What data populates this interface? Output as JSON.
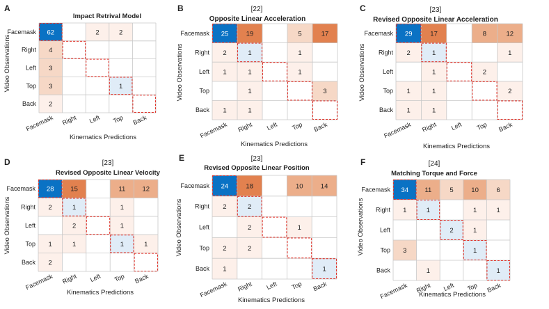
{
  "figure": {
    "axis_x_label": "Kinematics Predictions",
    "axis_y_label": "Video Observations",
    "categories": [
      "Facemask",
      "Right",
      "Left",
      "Top",
      "Back"
    ],
    "colors": {
      "dark_blue": "#0a72c4",
      "light_blue": "#e0ecf7",
      "orange_high": "#e2814f",
      "orange_mid": "#ecae8a",
      "orange_low": "#f6d8c6",
      "orange_faint": "#fdf0ea",
      "diagonal_dash": "#e0332a",
      "grid_line": "#c8c8c8",
      "text": "#222222"
    }
  },
  "chart_data": [
    {
      "type": "heatmap",
      "panel_letter": "A",
      "reference": "",
      "title": "Impact Retrival Model",
      "xlabel": "Kinematics Predictions",
      "ylabel": "Video Observations",
      "row_labels": [
        "Facemask",
        "Right",
        "Left",
        "Top",
        "Back"
      ],
      "col_labels": [
        "Facemask",
        "Right",
        "Left",
        "Top",
        "Back"
      ],
      "matrix": [
        [
          62,
          0,
          2,
          2,
          0
        ],
        [
          4,
          0,
          0,
          0,
          0
        ],
        [
          3,
          0,
          0,
          0,
          0
        ],
        [
          3,
          0,
          0,
          1,
          0
        ],
        [
          2,
          0,
          0,
          0,
          0
        ]
      ],
      "cell_text": [
        [
          "62",
          "",
          "2",
          "2",
          ""
        ],
        [
          "4",
          "",
          "",
          "",
          ""
        ],
        [
          "3",
          "",
          "",
          "",
          ""
        ],
        [
          "3",
          "",
          "",
          "1",
          ""
        ],
        [
          "2",
          "",
          "",
          "",
          ""
        ]
      ]
    },
    {
      "type": "heatmap",
      "panel_letter": "B",
      "reference": "[22]",
      "title": "Opposite Linear Acceleration",
      "xlabel": "Kinematics Predictions",
      "ylabel": "Video Observations",
      "row_labels": [
        "Facemask",
        "Right",
        "Left",
        "Top",
        "Back"
      ],
      "col_labels": [
        "Facemask",
        "Right",
        "Left",
        "Top",
        "Back"
      ],
      "matrix": [
        [
          25,
          19,
          0,
          5,
          17
        ],
        [
          2,
          1,
          0,
          1,
          0
        ],
        [
          1,
          1,
          0,
          1,
          0
        ],
        [
          0,
          1,
          0,
          0,
          3
        ],
        [
          1,
          1,
          0,
          0,
          0
        ]
      ],
      "cell_text": [
        [
          "25",
          "19",
          "",
          "5",
          "17"
        ],
        [
          "2",
          "1",
          "",
          "1",
          ""
        ],
        [
          "1",
          "1",
          "",
          "1",
          ""
        ],
        [
          "",
          "1",
          "",
          "",
          "3"
        ],
        [
          "1",
          "1",
          "",
          "",
          ""
        ]
      ]
    },
    {
      "type": "heatmap",
      "panel_letter": "C",
      "reference": "[23]",
      "title": "Revised Opposite Linear Acceleration",
      "xlabel": "Kinematics Predictions",
      "ylabel": "Video Observations",
      "row_labels": [
        "Facemask",
        "Right",
        "Left",
        "Top",
        "Back"
      ],
      "col_labels": [
        "Facemask",
        "Right",
        "Left",
        "Top",
        "Back"
      ],
      "matrix": [
        [
          29,
          17,
          0,
          8,
          12
        ],
        [
          2,
          1,
          0,
          0,
          1
        ],
        [
          0,
          1,
          0,
          2,
          0
        ],
        [
          1,
          1,
          0,
          0,
          2
        ],
        [
          1,
          1,
          0,
          0,
          0
        ]
      ],
      "cell_text": [
        [
          "29",
          "17",
          "",
          "8",
          "12"
        ],
        [
          "2",
          "1",
          "",
          "",
          "1"
        ],
        [
          "",
          "1",
          "",
          "2",
          ""
        ],
        [
          "1",
          "1",
          "",
          "",
          "2"
        ],
        [
          "1",
          "1",
          "",
          "",
          ""
        ]
      ]
    },
    {
      "type": "heatmap",
      "panel_letter": "D",
      "reference": "[23]",
      "title": "Revised Opposite Linear Velocity",
      "xlabel": "Kinematics Predictions",
      "ylabel": "Video Observations",
      "row_labels": [
        "Facemask",
        "Right",
        "Left",
        "Top",
        "Back"
      ],
      "col_labels": [
        "Facemask",
        "Right",
        "Left",
        "Top",
        "Back"
      ],
      "matrix": [
        [
          28,
          15,
          0,
          11,
          12
        ],
        [
          2,
          1,
          0,
          1,
          0
        ],
        [
          0,
          2,
          0,
          1,
          0
        ],
        [
          1,
          1,
          0,
          1,
          1
        ],
        [
          2,
          0,
          0,
          0,
          0
        ]
      ],
      "cell_text": [
        [
          "28",
          "15",
          "",
          "11",
          "12"
        ],
        [
          "2",
          "1",
          "",
          "1",
          ""
        ],
        [
          "",
          "2",
          "",
          "1",
          ""
        ],
        [
          "1",
          "1",
          "",
          "1",
          "1"
        ],
        [
          "2",
          "",
          "",
          "",
          ""
        ]
      ]
    },
    {
      "type": "heatmap",
      "panel_letter": "E",
      "reference": "[23]",
      "title": "Revised Opposite Linear Position",
      "xlabel": "Kinematics Predictions",
      "ylabel": "Video Observations",
      "row_labels": [
        "Facemask",
        "Right",
        "Left",
        "Top",
        "Back"
      ],
      "col_labels": [
        "Facemask",
        "Right",
        "Left",
        "Top",
        "Back"
      ],
      "matrix": [
        [
          24,
          18,
          0,
          10,
          14
        ],
        [
          2,
          2,
          0,
          0,
          0
        ],
        [
          0,
          2,
          0,
          1,
          0
        ],
        [
          2,
          2,
          0,
          0,
          0
        ],
        [
          1,
          0,
          0,
          0,
          1
        ]
      ],
      "cell_text": [
        [
          "24",
          "18",
          "",
          "10",
          "14"
        ],
        [
          "2",
          "2",
          "",
          "",
          ""
        ],
        [
          "",
          "2",
          "",
          "1",
          ""
        ],
        [
          "2",
          "2",
          "",
          "",
          ""
        ],
        [
          "1",
          "",
          "",
          "",
          "1"
        ]
      ]
    },
    {
      "type": "heatmap",
      "panel_letter": "F",
      "reference": "[24]",
      "title": "Matching Torque and Force",
      "xlabel": "Kinematics Predictions",
      "ylabel": "Video Observations",
      "row_labels": [
        "Facemask",
        "Right",
        "Left",
        "Top",
        "Back"
      ],
      "col_labels": [
        "Facemask",
        "Right",
        "Left",
        "Top",
        "Back"
      ],
      "matrix": [
        [
          34,
          11,
          5,
          10,
          6
        ],
        [
          1,
          1,
          0,
          1,
          1
        ],
        [
          0,
          0,
          2,
          1,
          0
        ],
        [
          3,
          0,
          0,
          1,
          0
        ],
        [
          0,
          1,
          0,
          0,
          1
        ]
      ],
      "cell_text": [
        [
          "34",
          "11",
          "5",
          "10",
          "6"
        ],
        [
          "1",
          "1",
          "",
          "1",
          "1"
        ],
        [
          "",
          "",
          "2",
          "1",
          ""
        ],
        [
          "3",
          "",
          "",
          "1",
          ""
        ],
        [
          "",
          "1",
          "",
          "",
          "1"
        ]
      ]
    }
  ]
}
